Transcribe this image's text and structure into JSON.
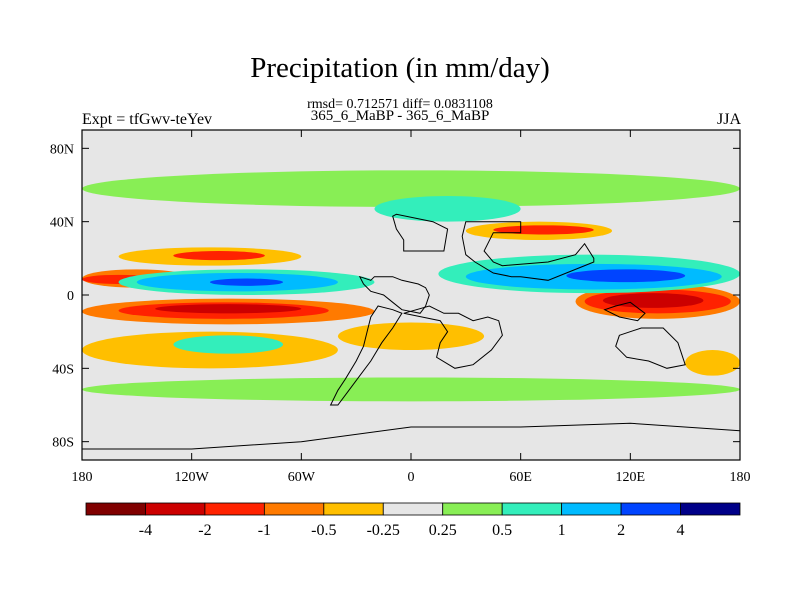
{
  "title": "Precipitation (in mm/day)",
  "stats": "rmsd= 0.712571 diff= 0.0831108",
  "subtitle": "365_6_MaBP - 365_6_MaBP",
  "left_label": "Expt = tfGwv-teYev",
  "right_label": "JJA",
  "chart_data": {
    "type": "heatmap",
    "xlim": [
      -180,
      180
    ],
    "ylim": [
      -90,
      90
    ],
    "x_ticks": [
      {
        "value": -180,
        "label": "180"
      },
      {
        "value": -120,
        "label": "120W"
      },
      {
        "value": -60,
        "label": "60W"
      },
      {
        "value": 0,
        "label": "0"
      },
      {
        "value": 60,
        "label": "60E"
      },
      {
        "value": 120,
        "label": "120E"
      },
      {
        "value": 180,
        "label": "180"
      }
    ],
    "y_ticks": [
      {
        "value": 80,
        "label": "80N"
      },
      {
        "value": 40,
        "label": "40N"
      },
      {
        "value": 0,
        "label": "0"
      },
      {
        "value": -40,
        "label": "40S"
      },
      {
        "value": -80,
        "label": "80S"
      }
    ],
    "colorbar": {
      "colors": [
        "#800000",
        "#cc0000",
        "#ff2200",
        "#ff7a00",
        "#ffbf00",
        "#e6e6e6",
        "#88ee55",
        "#33eebb",
        "#00bbff",
        "#0044ff",
        "#000088"
      ],
      "labels": [
        "-4",
        "-2",
        "-1",
        "-0.5",
        "-0.25",
        "0.25",
        "0.5",
        "1",
        "2",
        "4"
      ]
    },
    "background_color": "#e6e6e6",
    "fields": [
      {
        "lon": [
          -180,
          -20
        ],
        "lat": [
          -16,
          -2
        ],
        "color": "#ff7a00"
      },
      {
        "lon": [
          -160,
          -45
        ],
        "lat": [
          -13,
          -4
        ],
        "color": "#ff2200"
      },
      {
        "lon": [
          -140,
          -60
        ],
        "lat": [
          -10,
          -5
        ],
        "color": "#cc0000"
      },
      {
        "lon": [
          90,
          180
        ],
        "lat": [
          -13,
          6
        ],
        "color": "#ff7a00"
      },
      {
        "lon": [
          95,
          175
        ],
        "lat": [
          -10,
          3
        ],
        "color": "#ff2200"
      },
      {
        "lon": [
          105,
          160
        ],
        "lat": [
          -7,
          1
        ],
        "color": "#cc0000"
      },
      {
        "lon": [
          -180,
          -120
        ],
        "lat": [
          4,
          14
        ],
        "color": "#ff7a00"
      },
      {
        "lon": [
          -180,
          -140
        ],
        "lat": [
          6,
          11
        ],
        "color": "#ff2200"
      },
      {
        "lon": [
          -160,
          -20
        ],
        "lat": [
          0,
          14
        ],
        "color": "#33eebb"
      },
      {
        "lon": [
          -150,
          -40
        ],
        "lat": [
          2,
          12
        ],
        "color": "#00bbff"
      },
      {
        "lon": [
          -110,
          -70
        ],
        "lat": [
          5,
          9
        ],
        "color": "#0044ff"
      },
      {
        "lon": [
          15,
          180
        ],
        "lat": [
          1,
          22
        ],
        "color": "#33eebb"
      },
      {
        "lon": [
          30,
          170
        ],
        "lat": [
          3,
          17
        ],
        "color": "#00bbff"
      },
      {
        "lon": [
          85,
          150
        ],
        "lat": [
          7,
          14
        ],
        "color": "#0044ff"
      },
      {
        "lon": [
          -160,
          -60
        ],
        "lat": [
          16,
          26
        ],
        "color": "#ffbf00"
      },
      {
        "lon": [
          -130,
          -80
        ],
        "lat": [
          19,
          24
        ],
        "color": "#ff2200"
      },
      {
        "lon": [
          30,
          110
        ],
        "lat": [
          30,
          40
        ],
        "color": "#ffbf00"
      },
      {
        "lon": [
          45,
          100
        ],
        "lat": [
          33,
          38
        ],
        "color": "#ff2200"
      },
      {
        "lon": [
          -180,
          180
        ],
        "lat": [
          48,
          68
        ],
        "color": "#88ee55"
      },
      {
        "lon": [
          -20,
          60
        ],
        "lat": [
          40,
          54
        ],
        "color": "#33eebb"
      },
      {
        "lon": [
          -180,
          -40
        ],
        "lat": [
          -40,
          -20
        ],
        "color": "#ffbf00"
      },
      {
        "lon": [
          -130,
          -70
        ],
        "lat": [
          -32,
          -22
        ],
        "color": "#33eebb"
      },
      {
        "lon": [
          -180,
          180
        ],
        "lat": [
          -58,
          -45
        ],
        "color": "#88ee55"
      },
      {
        "lon": [
          150,
          180
        ],
        "lat": [
          -44,
          -30
        ],
        "color": "#ffbf00"
      },
      {
        "lon": [
          -40,
          40
        ],
        "lat": [
          -30,
          -15
        ],
        "color": "#ffbf00"
      }
    ],
    "coastlines": [
      {
        "name": "north-america",
        "points": [
          [
            -10,
            43
          ],
          [
            -8,
            44
          ],
          [
            12,
            40
          ],
          [
            20,
            36
          ],
          [
            18,
            24
          ],
          [
            -4,
            24
          ],
          [
            -4,
            30
          ],
          [
            -8,
            36
          ]
        ]
      },
      {
        "name": "europe-asia",
        "points": [
          [
            30,
            40
          ],
          [
            60,
            40
          ],
          [
            60,
            34
          ],
          [
            45,
            34
          ],
          [
            40,
            24
          ],
          [
            45,
            18
          ],
          [
            50,
            16
          ],
          [
            75,
            18
          ],
          [
            90,
            22
          ],
          [
            95,
            28
          ],
          [
            100,
            20
          ],
          [
            100,
            18
          ],
          [
            85,
            12
          ],
          [
            75,
            8
          ],
          [
            60,
            10
          ],
          [
            55,
            10
          ],
          [
            45,
            12
          ],
          [
            35,
            18
          ],
          [
            30,
            22
          ],
          [
            28,
            32
          ]
        ]
      },
      {
        "name": "central-america",
        "points": [
          [
            -28,
            10
          ],
          [
            -22,
            8
          ],
          [
            -20,
            10
          ],
          [
            -10,
            10
          ],
          [
            -5,
            8
          ],
          [
            4,
            6
          ],
          [
            8,
            4
          ],
          [
            10,
            0
          ],
          [
            8,
            -6
          ],
          [
            5,
            -10
          ],
          [
            -5,
            -8
          ],
          [
            -10,
            -4
          ],
          [
            -15,
            0
          ],
          [
            -22,
            2
          ],
          [
            -26,
            6
          ]
        ]
      },
      {
        "name": "south-america",
        "points": [
          [
            -18,
            -6
          ],
          [
            -10,
            -8
          ],
          [
            -5,
            -10
          ],
          [
            -10,
            -18
          ],
          [
            -16,
            -26
          ],
          [
            -22,
            -36
          ],
          [
            -28,
            -44
          ],
          [
            -34,
            -52
          ],
          [
            -40,
            -60
          ],
          [
            -44,
            -60
          ],
          [
            -40,
            -52
          ],
          [
            -36,
            -46
          ],
          [
            -30,
            -36
          ],
          [
            -26,
            -28
          ],
          [
            -24,
            -20
          ],
          [
            -22,
            -12
          ]
        ]
      },
      {
        "name": "africa",
        "points": [
          [
            -4,
            -10
          ],
          [
            6,
            -12
          ],
          [
            16,
            -14
          ],
          [
            20,
            -20
          ],
          [
            16,
            -26
          ],
          [
            14,
            -34
          ],
          [
            24,
            -40
          ],
          [
            34,
            -38
          ],
          [
            44,
            -30
          ],
          [
            50,
            -22
          ],
          [
            48,
            -14
          ],
          [
            42,
            -12
          ],
          [
            34,
            -14
          ],
          [
            26,
            -10
          ],
          [
            18,
            -10
          ],
          [
            10,
            -6
          ]
        ]
      },
      {
        "name": "maritime-continent",
        "points": [
          [
            112,
            -6
          ],
          [
            120,
            -4
          ],
          [
            128,
            -10
          ],
          [
            124,
            -14
          ],
          [
            114,
            -12
          ],
          [
            106,
            -8
          ]
        ]
      },
      {
        "name": "australia",
        "points": [
          [
            114,
            -22
          ],
          [
            126,
            -18
          ],
          [
            138,
            -18
          ],
          [
            146,
            -26
          ],
          [
            150,
            -38
          ],
          [
            140,
            -40
          ],
          [
            130,
            -36
          ],
          [
            118,
            -34
          ],
          [
            112,
            -28
          ]
        ]
      },
      {
        "name": "antarctica",
        "points": [
          [
            -180,
            -84
          ],
          [
            -120,
            -84
          ],
          [
            -60,
            -80
          ],
          [
            0,
            -72
          ],
          [
            60,
            -72
          ],
          [
            120,
            -70
          ],
          [
            180,
            -74
          ],
          [
            180,
            -90
          ],
          [
            -180,
            -90
          ]
        ]
      }
    ]
  }
}
